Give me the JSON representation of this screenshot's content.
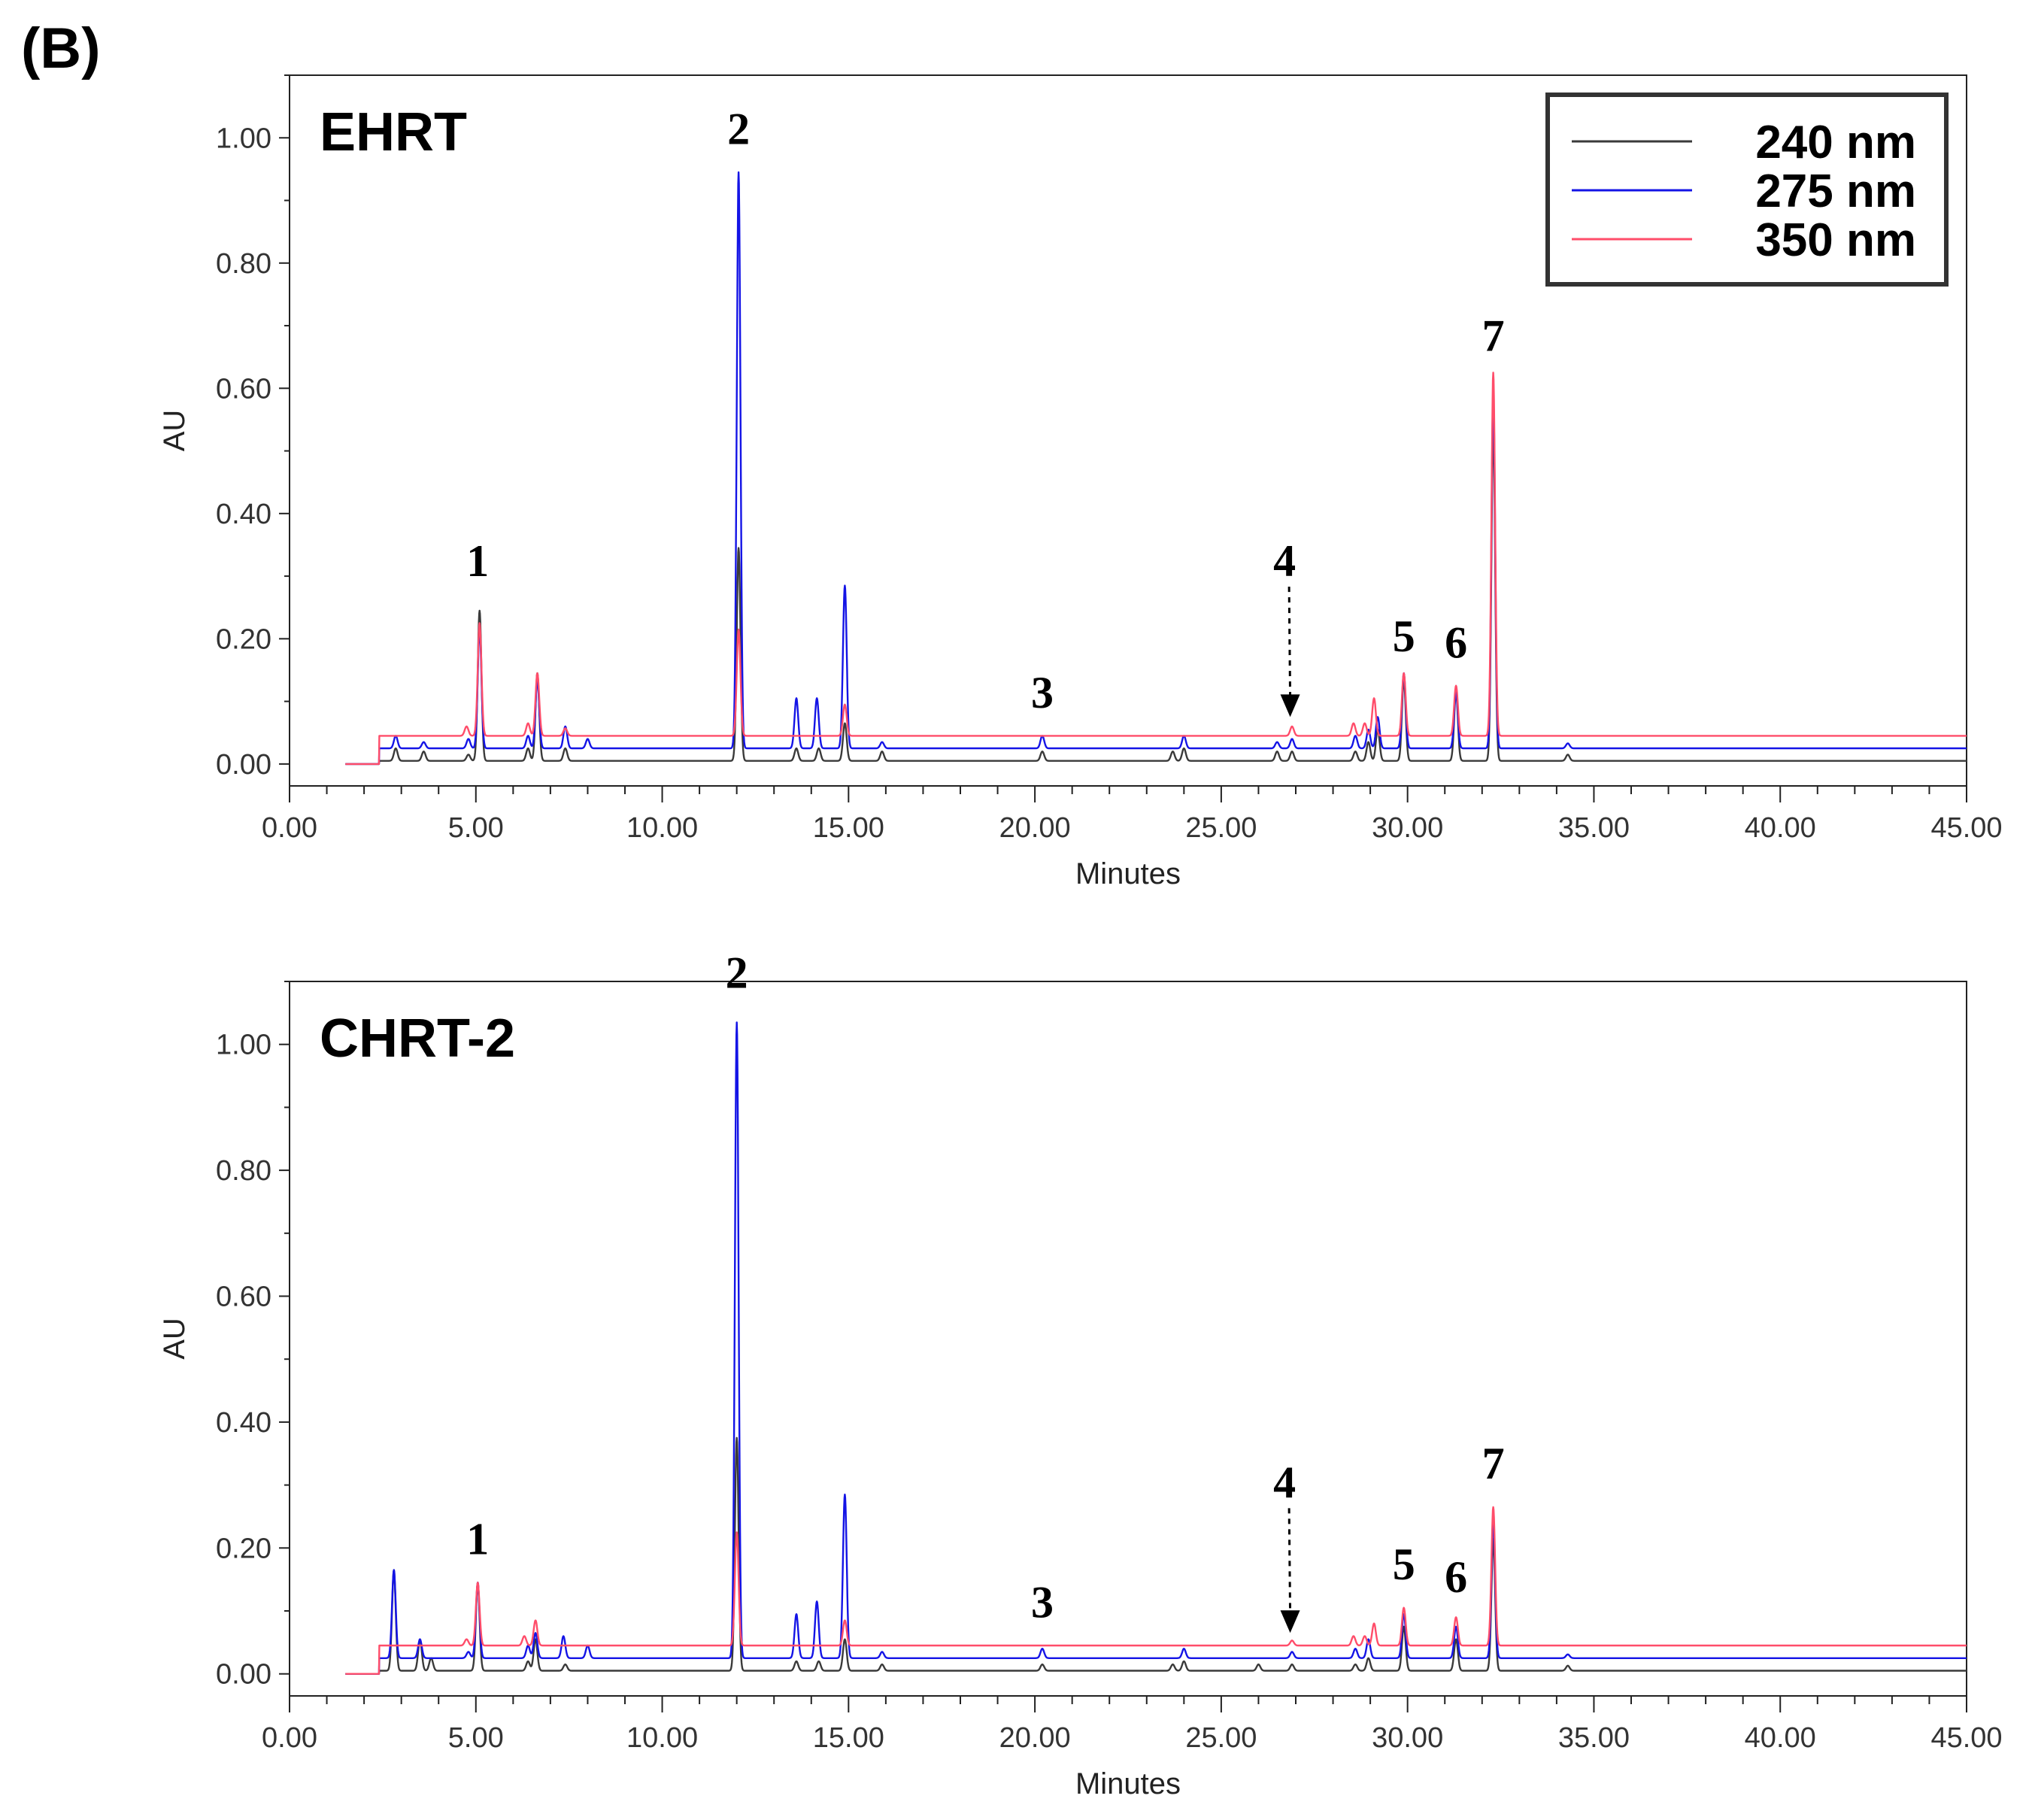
{
  "panel_label": "(B)",
  "colors": {
    "240 nm": "#3a3a3a",
    "275 nm": "#1414e6",
    "350 nm": "#ff4d6a"
  },
  "chart_data": [
    {
      "type": "line",
      "title": "EHRT",
      "xlabel": "Minutes",
      "ylabel": "AU",
      "xlim": [
        0,
        45
      ],
      "ylim": [
        -0.035,
        1.1
      ],
      "x_ticks": [
        "0.00",
        "5.00",
        "10.00",
        "15.00",
        "20.00",
        "25.00",
        "30.00",
        "35.00",
        "40.00",
        "45.00"
      ],
      "y_ticks": [
        "0.00",
        "0.20",
        "0.40",
        "0.60",
        "0.80",
        "1.00"
      ],
      "legend": {
        "position": "top-right",
        "entries": [
          {
            "label": "240 nm",
            "color": "#3a3a3a"
          },
          {
            "label": "275 nm",
            "color": "#1414e6"
          },
          {
            "label": "350 nm",
            "color": "#ff4d6a"
          }
        ]
      },
      "series": [
        {
          "name": "240 nm",
          "baseline": 0.005,
          "peaks": [
            [
              2.85,
              0.02
            ],
            [
              3.6,
              0.015
            ],
            [
              4.8,
              0.01
            ],
            [
              5.1,
              0.24
            ],
            [
              6.4,
              0.02
            ],
            [
              6.65,
              0.14
            ],
            [
              7.4,
              0.02
            ],
            [
              12.05,
              0.34
            ],
            [
              13.6,
              0.02
            ],
            [
              14.2,
              0.02
            ],
            [
              14.9,
              0.06
            ],
            [
              15.9,
              0.015
            ],
            [
              20.2,
              0.015
            ],
            [
              23.7,
              0.015
            ],
            [
              24.0,
              0.02
            ],
            [
              26.5,
              0.015
            ],
            [
              26.9,
              0.015
            ],
            [
              28.6,
              0.015
            ],
            [
              28.95,
              0.03
            ],
            [
              29.2,
              0.05
            ],
            [
              29.9,
              0.13
            ],
            [
              31.3,
              0.11
            ],
            [
              32.3,
              0.54
            ],
            [
              34.3,
              0.01
            ]
          ]
        },
        {
          "name": "275 nm",
          "baseline": 0.025,
          "peaks": [
            [
              2.85,
              0.02
            ],
            [
              3.6,
              0.01
            ],
            [
              4.8,
              0.015
            ],
            [
              5.1,
              0.19
            ],
            [
              6.4,
              0.02
            ],
            [
              6.65,
              0.11
            ],
            [
              7.4,
              0.035
            ],
            [
              8.0,
              0.015
            ],
            [
              12.05,
              0.92
            ],
            [
              13.6,
              0.08
            ],
            [
              14.15,
              0.08
            ],
            [
              14.9,
              0.26
            ],
            [
              15.9,
              0.01
            ],
            [
              20.2,
              0.02
            ],
            [
              24.0,
              0.02
            ],
            [
              26.5,
              0.01
            ],
            [
              26.9,
              0.015
            ],
            [
              28.6,
              0.02
            ],
            [
              28.95,
              0.03
            ],
            [
              29.2,
              0.05
            ],
            [
              29.9,
              0.12
            ],
            [
              31.3,
              0.09
            ],
            [
              32.3,
              0.57
            ],
            [
              34.3,
              0.008
            ]
          ]
        },
        {
          "name": "350 nm",
          "baseline": 0.045,
          "peaks": [
            [
              4.75,
              0.015
            ],
            [
              5.1,
              0.18
            ],
            [
              6.4,
              0.02
            ],
            [
              6.65,
              0.1
            ],
            [
              7.4,
              0.012
            ],
            [
              12.05,
              0.17
            ],
            [
              14.9,
              0.05
            ],
            [
              26.9,
              0.015
            ],
            [
              28.55,
              0.02
            ],
            [
              28.85,
              0.02
            ],
            [
              29.1,
              0.06
            ],
            [
              29.9,
              0.1
            ],
            [
              31.3,
              0.08
            ],
            [
              32.3,
              0.58
            ]
          ]
        }
      ],
      "annotations": [
        {
          "label": "1",
          "x": 5.05,
          "y": 0.3
        },
        {
          "label": "2",
          "x": 12.05,
          "y": 0.99
        },
        {
          "label": "3",
          "x": 20.2,
          "y": 0.09
        },
        {
          "label": "4",
          "x": 26.7,
          "y": 0.3,
          "arrow_to": [
            26.85,
            0.075
          ]
        },
        {
          "label": "5",
          "x": 29.9,
          "y": 0.18
        },
        {
          "label": "6",
          "x": 31.3,
          "y": 0.17
        },
        {
          "label": "7",
          "x": 32.3,
          "y": 0.66
        }
      ]
    },
    {
      "type": "line",
      "title": "CHRT-2",
      "xlabel": "Minutes",
      "ylabel": "AU",
      "xlim": [
        0,
        45
      ],
      "ylim": [
        -0.035,
        1.1
      ],
      "x_ticks": [
        "0.00",
        "5.00",
        "10.00",
        "15.00",
        "20.00",
        "25.00",
        "30.00",
        "35.00",
        "40.00",
        "45.00"
      ],
      "y_ticks": [
        "0.00",
        "0.20",
        "0.40",
        "0.60",
        "0.80",
        "1.00"
      ],
      "series": [
        {
          "name": "240 nm",
          "baseline": 0.005,
          "peaks": [
            [
              2.8,
              0.16
            ],
            [
              3.5,
              0.05
            ],
            [
              3.8,
              0.02
            ],
            [
              5.05,
              0.14
            ],
            [
              6.4,
              0.015
            ],
            [
              6.6,
              0.05
            ],
            [
              7.4,
              0.01
            ],
            [
              12.0,
              0.37
            ],
            [
              13.6,
              0.015
            ],
            [
              14.2,
              0.015
            ],
            [
              14.9,
              0.05
            ],
            [
              15.9,
              0.01
            ],
            [
              20.2,
              0.01
            ],
            [
              23.7,
              0.01
            ],
            [
              24.0,
              0.015
            ],
            [
              26.0,
              0.01
            ],
            [
              26.9,
              0.01
            ],
            [
              28.6,
              0.01
            ],
            [
              28.95,
              0.02
            ],
            [
              29.9,
              0.07
            ],
            [
              31.3,
              0.05
            ],
            [
              32.3,
              0.21
            ],
            [
              34.3,
              0.008
            ]
          ]
        },
        {
          "name": "275 nm",
          "baseline": 0.025,
          "peaks": [
            [
              2.8,
              0.14
            ],
            [
              3.5,
              0.03
            ],
            [
              4.8,
              0.01
            ],
            [
              5.05,
              0.12
            ],
            [
              6.4,
              0.02
            ],
            [
              6.6,
              0.04
            ],
            [
              7.35,
              0.035
            ],
            [
              8.0,
              0.02
            ],
            [
              12.0,
              1.01
            ],
            [
              13.6,
              0.07
            ],
            [
              14.15,
              0.09
            ],
            [
              14.9,
              0.26
            ],
            [
              15.9,
              0.01
            ],
            [
              20.2,
              0.015
            ],
            [
              24.0,
              0.015
            ],
            [
              26.9,
              0.01
            ],
            [
              28.6,
              0.015
            ],
            [
              28.95,
              0.03
            ],
            [
              29.9,
              0.07
            ],
            [
              31.3,
              0.05
            ],
            [
              32.3,
              0.22
            ],
            [
              34.3,
              0.006
            ]
          ]
        },
        {
          "name": "350 nm",
          "baseline": 0.045,
          "peaks": [
            [
              4.75,
              0.01
            ],
            [
              5.05,
              0.1
            ],
            [
              6.3,
              0.015
            ],
            [
              6.6,
              0.04
            ],
            [
              12.0,
              0.18
            ],
            [
              14.9,
              0.04
            ],
            [
              26.9,
              0.008
            ],
            [
              28.55,
              0.015
            ],
            [
              28.85,
              0.015
            ],
            [
              29.1,
              0.035
            ],
            [
              29.9,
              0.06
            ],
            [
              31.3,
              0.045
            ],
            [
              32.3,
              0.22
            ]
          ]
        }
      ],
      "annotations": [
        {
          "label": "1",
          "x": 5.05,
          "y": 0.19
        },
        {
          "label": "2",
          "x": 12.0,
          "y": 1.09
        },
        {
          "label": "3",
          "x": 20.2,
          "y": 0.09
        },
        {
          "label": "4",
          "x": 26.7,
          "y": 0.28,
          "arrow_to": [
            26.85,
            0.065
          ]
        },
        {
          "label": "5",
          "x": 29.9,
          "y": 0.15
        },
        {
          "label": "6",
          "x": 31.3,
          "y": 0.13
        },
        {
          "label": "7",
          "x": 32.3,
          "y": 0.31
        }
      ]
    }
  ]
}
